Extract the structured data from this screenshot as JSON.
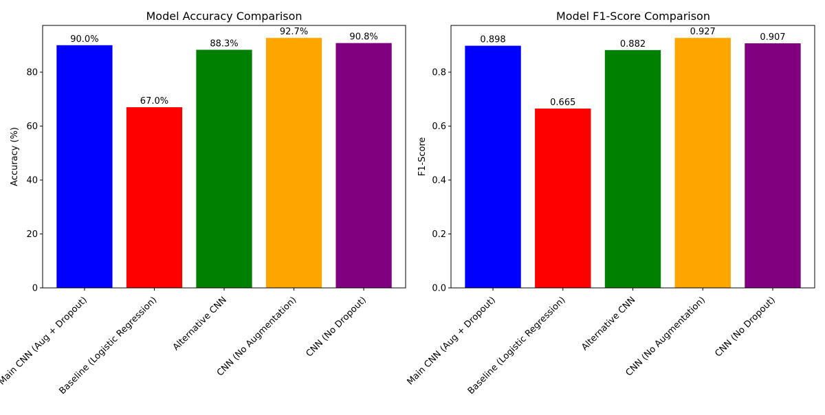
{
  "chart_data": [
    {
      "type": "bar",
      "title": "Model Accuracy Comparison",
      "xlabel": "",
      "ylabel": "Accuracy (%)",
      "categories": [
        "Main CNN (Aug + Dropout)",
        "Baseline (Logistic Regression)",
        "Alternative CNN",
        "CNN (No Augmentation)",
        "CNN (No Dropout)"
      ],
      "values": [
        90.0,
        67.0,
        88.3,
        92.7,
        90.8
      ],
      "value_labels": [
        "90.0%",
        "67.0%",
        "88.3%",
        "92.7%",
        "90.8%"
      ],
      "colors": [
        "#0000ff",
        "#ff0000",
        "#008000",
        "#ffa500",
        "#800080"
      ],
      "ylim": [
        0,
        97.335
      ],
      "yticks": [
        0,
        20,
        40,
        60,
        80
      ],
      "ytick_labels": [
        "0",
        "20",
        "40",
        "60",
        "80"
      ],
      "grid": false,
      "legend": "none"
    },
    {
      "type": "bar",
      "title": "Model F1-Score Comparison",
      "xlabel": "",
      "ylabel": "F1-Score",
      "categories": [
        "Main CNN (Aug + Dropout)",
        "Baseline (Logistic Regression)",
        "Alternative CNN",
        "CNN (No Augmentation)",
        "CNN (No Dropout)"
      ],
      "values": [
        0.898,
        0.665,
        0.882,
        0.927,
        0.907
      ],
      "value_labels": [
        "0.898",
        "0.665",
        "0.882",
        "0.927",
        "0.907"
      ],
      "colors": [
        "#0000ff",
        "#ff0000",
        "#008000",
        "#ffa500",
        "#800080"
      ],
      "ylim": [
        0,
        0.97335
      ],
      "yticks": [
        0,
        0.2,
        0.4,
        0.6,
        0.8
      ],
      "ytick_labels": [
        "0.0",
        "0.2",
        "0.4",
        "0.6",
        "0.8"
      ],
      "grid": false,
      "legend": "none"
    }
  ]
}
